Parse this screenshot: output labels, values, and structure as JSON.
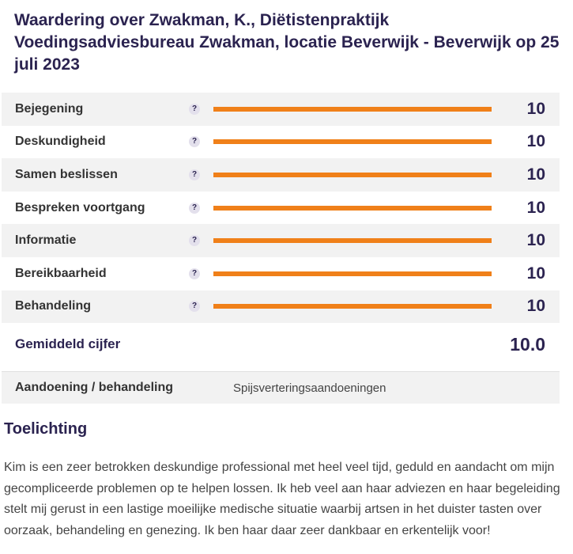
{
  "title": "Waardering over Zwakman, K., Diëtistenpraktijk Voedingsadviesbureau Zwakman, locatie Beverwijk - Beverwijk op 25 juli 2023",
  "help_symbol": "?",
  "ratings": [
    {
      "label": "Bejegening",
      "score": "10",
      "fill_fraction": 1.0
    },
    {
      "label": "Deskundigheid",
      "score": "10",
      "fill_fraction": 1.0
    },
    {
      "label": "Samen beslissen",
      "score": "10",
      "fill_fraction": 1.0
    },
    {
      "label": "Bespreken voortgang",
      "score": "10",
      "fill_fraction": 1.0
    },
    {
      "label": "Informatie",
      "score": "10",
      "fill_fraction": 1.0
    },
    {
      "label": "Bereikbaarheid",
      "score": "10",
      "fill_fraction": 1.0
    },
    {
      "label": "Behandeling",
      "score": "10",
      "fill_fraction": 1.0
    }
  ],
  "average": {
    "label": "Gemiddeld cijfer",
    "score": "10.0"
  },
  "condition": {
    "label": "Aandoening / behandeling",
    "value": "Spijsverteringsaandoeningen"
  },
  "explanation": {
    "heading": "Toelichting",
    "text": "Kim is een zeer betrokken deskundige professional met heel veel tijd, geduld en aandacht om mijn gecompliceerde problemen op te helpen lossen. Ik heb veel aan haar adviezen en haar begeleiding stelt mij gerust in een lastige moeilijke medische situatie waarbij artsen in het duister tasten over oorzaak, behandeling en genezing. Ik ben haar daar zeer dankbaar en erkentelijk voor!"
  },
  "colors": {
    "bar_fill": "#f08019",
    "heading": "#2b2350",
    "row_shade": "#f2f2f2"
  }
}
